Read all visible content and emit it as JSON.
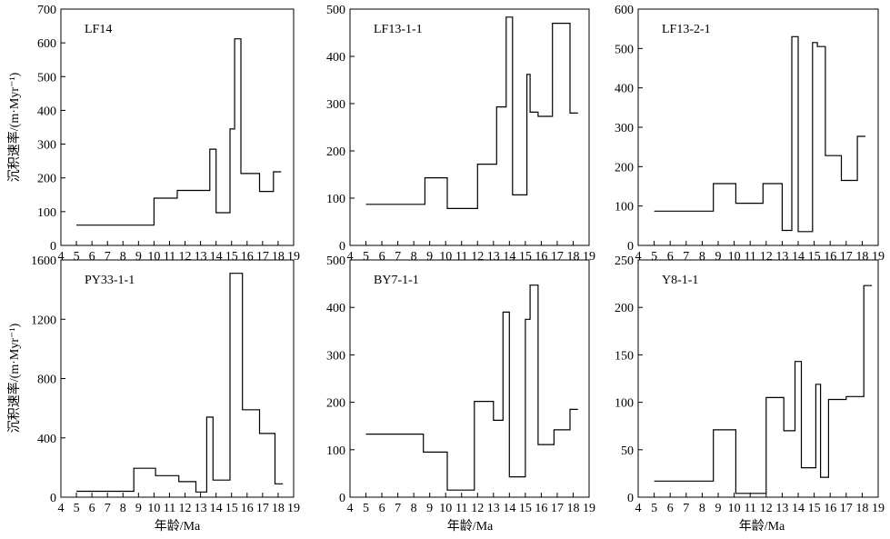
{
  "figure": {
    "ylabel": "沉积速率/(m·Myr⁻¹)",
    "xlabel": "年龄/Ma"
  },
  "chart_data": [
    {
      "type": "line",
      "step": true,
      "label": "LF14",
      "xlim": [
        4,
        19
      ],
      "xticks": [
        4,
        5,
        6,
        7,
        8,
        9,
        10,
        11,
        12,
        13,
        14,
        15,
        16,
        17,
        18,
        19
      ],
      "ylim": [
        0,
        700
      ],
      "yticks": [
        0,
        100,
        200,
        300,
        400,
        500,
        600,
        700
      ],
      "points": [
        [
          5,
          60
        ],
        [
          10,
          60
        ],
        [
          10,
          140
        ],
        [
          11.5,
          140
        ],
        [
          11.5,
          163
        ],
        [
          13.6,
          163
        ],
        [
          13.6,
          285
        ],
        [
          14,
          285
        ],
        [
          14,
          97
        ],
        [
          14.9,
          97
        ],
        [
          14.9,
          345
        ],
        [
          15.2,
          345
        ],
        [
          15.2,
          612
        ],
        [
          15.6,
          612
        ],
        [
          15.6,
          213
        ],
        [
          16.8,
          213
        ],
        [
          16.8,
          160
        ],
        [
          17.7,
          160
        ],
        [
          17.7,
          218
        ],
        [
          18.2,
          218
        ]
      ]
    },
    {
      "type": "line",
      "step": true,
      "label": "LF13-1-1",
      "xlim": [
        4,
        19
      ],
      "xticks": [
        4,
        5,
        6,
        7,
        8,
        9,
        10,
        11,
        12,
        13,
        14,
        15,
        16,
        17,
        18,
        19
      ],
      "ylim": [
        0,
        500
      ],
      "yticks": [
        0,
        100,
        200,
        300,
        400,
        500
      ],
      "points": [
        [
          5,
          87
        ],
        [
          8.7,
          87
        ],
        [
          8.7,
          143
        ],
        [
          10.1,
          143
        ],
        [
          10.1,
          78
        ],
        [
          12,
          78
        ],
        [
          12,
          172
        ],
        [
          13.2,
          172
        ],
        [
          13.2,
          293
        ],
        [
          13.8,
          293
        ],
        [
          13.8,
          483
        ],
        [
          14.2,
          483
        ],
        [
          14.2,
          107
        ],
        [
          15.1,
          107
        ],
        [
          15.1,
          362
        ],
        [
          15.3,
          362
        ],
        [
          15.3,
          282
        ],
        [
          15.8,
          282
        ],
        [
          15.8,
          273
        ],
        [
          16.7,
          273
        ],
        [
          16.7,
          470
        ],
        [
          17.8,
          470
        ],
        [
          17.8,
          280
        ],
        [
          18.3,
          280
        ]
      ]
    },
    {
      "type": "line",
      "step": true,
      "label": "LF13-2-1",
      "xlim": [
        4,
        19
      ],
      "xticks": [
        4,
        5,
        6,
        7,
        8,
        9,
        10,
        11,
        12,
        13,
        14,
        15,
        16,
        17,
        18,
        19
      ],
      "ylim": [
        0,
        600
      ],
      "yticks": [
        0,
        100,
        200,
        300,
        400,
        500,
        600
      ],
      "points": [
        [
          5,
          87
        ],
        [
          8.7,
          87
        ],
        [
          8.7,
          157
        ],
        [
          10.1,
          157
        ],
        [
          10.1,
          107
        ],
        [
          11.8,
          107
        ],
        [
          11.8,
          157
        ],
        [
          13,
          157
        ],
        [
          13,
          38
        ],
        [
          13.6,
          38
        ],
        [
          13.6,
          530
        ],
        [
          14,
          530
        ],
        [
          14,
          35
        ],
        [
          14.9,
          35
        ],
        [
          14.9,
          515
        ],
        [
          15.2,
          515
        ],
        [
          15.2,
          505
        ],
        [
          15.7,
          505
        ],
        [
          15.7,
          228
        ],
        [
          16.7,
          228
        ],
        [
          16.7,
          165
        ],
        [
          17.7,
          165
        ],
        [
          17.7,
          277
        ],
        [
          18.2,
          277
        ]
      ]
    },
    {
      "type": "line",
      "step": true,
      "label": "PY33-1-1",
      "xlim": [
        4,
        19
      ],
      "xticks": [
        4,
        5,
        6,
        7,
        8,
        9,
        10,
        11,
        12,
        13,
        14,
        15,
        16,
        17,
        18,
        19
      ],
      "ylim": [
        0,
        1600
      ],
      "yticks": [
        0,
        400,
        800,
        1200,
        1600
      ],
      "points": [
        [
          5,
          40
        ],
        [
          8.7,
          40
        ],
        [
          8.7,
          195
        ],
        [
          10.1,
          195
        ],
        [
          10.1,
          145
        ],
        [
          11.6,
          145
        ],
        [
          11.6,
          105
        ],
        [
          12.7,
          105
        ],
        [
          12.7,
          35
        ],
        [
          13.4,
          35
        ],
        [
          13.4,
          540
        ],
        [
          13.8,
          540
        ],
        [
          13.8,
          115
        ],
        [
          14.9,
          115
        ],
        [
          14.9,
          1510
        ],
        [
          15.7,
          1510
        ],
        [
          15.7,
          590
        ],
        [
          16.8,
          590
        ],
        [
          16.8,
          430
        ],
        [
          17.8,
          430
        ],
        [
          17.8,
          90
        ],
        [
          18.3,
          90
        ]
      ]
    },
    {
      "type": "line",
      "step": true,
      "label": "BY7-1-1",
      "xlim": [
        4,
        19
      ],
      "xticks": [
        4,
        5,
        6,
        7,
        8,
        9,
        10,
        11,
        12,
        13,
        14,
        15,
        16,
        17,
        18,
        19
      ],
      "ylim": [
        0,
        500
      ],
      "yticks": [
        0,
        100,
        200,
        300,
        400,
        500
      ],
      "points": [
        [
          5,
          133
        ],
        [
          8.6,
          133
        ],
        [
          8.6,
          95
        ],
        [
          10.1,
          95
        ],
        [
          10.1,
          15
        ],
        [
          11.8,
          15
        ],
        [
          11.8,
          202
        ],
        [
          13,
          202
        ],
        [
          13,
          162
        ],
        [
          13.6,
          162
        ],
        [
          13.6,
          390
        ],
        [
          14,
          390
        ],
        [
          14,
          43
        ],
        [
          15,
          43
        ],
        [
          15,
          375
        ],
        [
          15.3,
          375
        ],
        [
          15.3,
          447
        ],
        [
          15.8,
          447
        ],
        [
          15.8,
          111
        ],
        [
          16.8,
          111
        ],
        [
          16.8,
          142
        ],
        [
          17.8,
          142
        ],
        [
          17.8,
          185
        ],
        [
          18.3,
          185
        ]
      ]
    },
    {
      "type": "line",
      "step": true,
      "label": "Y8-1-1",
      "xlim": [
        4,
        19
      ],
      "xticks": [
        4,
        5,
        6,
        7,
        8,
        9,
        10,
        11,
        12,
        13,
        14,
        15,
        16,
        17,
        18,
        19
      ],
      "ylim": [
        0,
        250
      ],
      "yticks": [
        0,
        50,
        100,
        150,
        200,
        250
      ],
      "points": [
        [
          5,
          17
        ],
        [
          8.7,
          17
        ],
        [
          8.7,
          71
        ],
        [
          10.1,
          71
        ],
        [
          10.1,
          4
        ],
        [
          12,
          4
        ],
        [
          12,
          105
        ],
        [
          13.1,
          105
        ],
        [
          13.1,
          70
        ],
        [
          13.8,
          70
        ],
        [
          13.8,
          143
        ],
        [
          14.2,
          143
        ],
        [
          14.2,
          31
        ],
        [
          15.1,
          31
        ],
        [
          15.1,
          119
        ],
        [
          15.4,
          119
        ],
        [
          15.4,
          21
        ],
        [
          15.9,
          21
        ],
        [
          15.9,
          103
        ],
        [
          17,
          103
        ],
        [
          17,
          106
        ],
        [
          18.1,
          106
        ],
        [
          18.1,
          223
        ],
        [
          18.6,
          223
        ]
      ]
    }
  ]
}
